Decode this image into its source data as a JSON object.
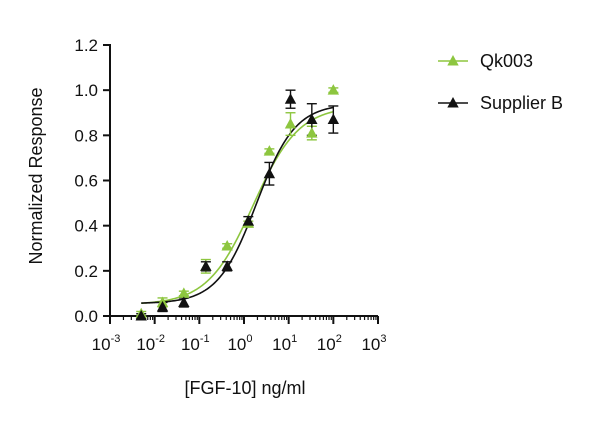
{
  "chart_data": {
    "type": "scatter",
    "title": "",
    "xlabel": "[FGF-10] ng/ml",
    "ylabel": "Normalized Response",
    "x_scale": "log10",
    "xlim": [
      0.001,
      1000
    ],
    "ylim": [
      0,
      1.2
    ],
    "x_tick_base": "10",
    "x_tick_exponents": [
      "-3",
      "-2",
      "-1",
      "0",
      "1",
      "2",
      "3"
    ],
    "y_ticks": [
      "0.0",
      "0.2",
      "0.4",
      "0.6",
      "0.8",
      "1.0",
      "1.2"
    ],
    "grid": false,
    "legend_position": "top-right",
    "fit": "4-parameter logistic",
    "series": [
      {
        "name": "Qk003",
        "color": "#8dc63f",
        "marker": "triangle",
        "x": [
          0.005,
          0.015,
          0.045,
          0.14,
          0.42,
          1.25,
          3.7,
          11,
          33,
          100
        ],
        "y": [
          0.01,
          0.06,
          0.1,
          0.22,
          0.31,
          0.41,
          0.73,
          0.85,
          0.81,
          1.0
        ],
        "error": [
          0.01,
          0.02,
          0.01,
          0.03,
          0.01,
          0.01,
          0.01,
          0.05,
          0.03,
          0.01
        ],
        "fit_params": {
          "bottom": 0.05,
          "top": 0.93,
          "ec50": 1.6,
          "hill": 0.85
        }
      },
      {
        "name": "Supplier B",
        "color": "#111111",
        "marker": "triangle",
        "x": [
          0.005,
          0.015,
          0.045,
          0.14,
          0.42,
          1.25,
          3.7,
          11,
          33,
          100
        ],
        "y": [
          0.0,
          0.04,
          0.06,
          0.22,
          0.22,
          0.42,
          0.63,
          0.96,
          0.87,
          0.87
        ],
        "error": [
          0.01,
          0.02,
          0.02,
          0.02,
          0.02,
          0.02,
          0.05,
          0.04,
          0.07,
          0.06
        ],
        "fit_params": {
          "bottom": 0.055,
          "top": 0.94,
          "ec50": 1.9,
          "hill": 1.0
        }
      }
    ]
  }
}
